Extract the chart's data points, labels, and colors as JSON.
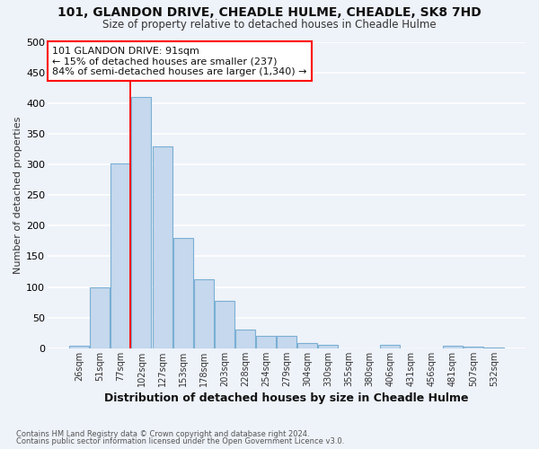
{
  "title": "101, GLANDON DRIVE, CHEADLE HULME, CHEADLE, SK8 7HD",
  "subtitle": "Size of property relative to detached houses in Cheadle Hulme",
  "xlabel": "Distribution of detached houses by size in Cheadle Hulme",
  "ylabel": "Number of detached properties",
  "bar_labels": [
    "26sqm",
    "51sqm",
    "77sqm",
    "102sqm",
    "127sqm",
    "153sqm",
    "178sqm",
    "203sqm",
    "228sqm",
    "254sqm",
    "279sqm",
    "304sqm",
    "330sqm",
    "355sqm",
    "380sqm",
    "406sqm",
    "431sqm",
    "456sqm",
    "481sqm",
    "507sqm",
    "532sqm"
  ],
  "bar_values": [
    4,
    100,
    301,
    410,
    330,
    180,
    112,
    78,
    30,
    20,
    20,
    8,
    5,
    0,
    0,
    6,
    0,
    0,
    4,
    3,
    2
  ],
  "bar_color": "#c5d8ed",
  "bar_edge_color": "#7aafd4",
  "annotation_text": "101 GLANDON DRIVE: 91sqm\n← 15% of detached houses are smaller (237)\n84% of semi-detached houses are larger (1,340) →",
  "annotation_box_color": "white",
  "annotation_box_edge_color": "red",
  "property_line_color": "red",
  "background_color": "#eef2f9",
  "grid_color": "white",
  "footer_line1": "Contains HM Land Registry data © Crown copyright and database right 2024.",
  "footer_line2": "Contains public sector information licensed under the Open Government Licence v3.0.",
  "ylim": [
    0,
    500
  ],
  "yticks": [
    0,
    50,
    100,
    150,
    200,
    250,
    300,
    350,
    400,
    450,
    500
  ]
}
